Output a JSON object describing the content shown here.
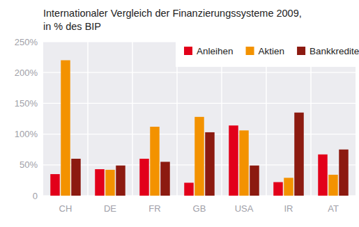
{
  "chart_data": {
    "type": "bar",
    "title": "Internationaler Vergleich der Finanzierungssysteme 2009,",
    "subtitle": "in % des BIP",
    "categories": [
      "CH",
      "DE",
      "FR",
      "GB",
      "USA",
      "IR",
      "AT"
    ],
    "series": [
      {
        "name": "Anleihen",
        "color": "#e2001a",
        "values": [
          35,
          43,
          60,
          21,
          114,
          22,
          67
        ]
      },
      {
        "name": "Aktien",
        "color": "#f39200",
        "values": [
          220,
          42,
          112,
          128,
          106,
          29,
          34
        ]
      },
      {
        "name": "Bankkredite",
        "color": "#8c1a10",
        "values": [
          60,
          49,
          55,
          103,
          49,
          135,
          75
        ]
      }
    ],
    "ylim": [
      0,
      250
    ],
    "yticks": [
      0,
      {
        "value": 50,
        "label": "50%"
      },
      {
        "value": 100,
        "label": "100%"
      },
      {
        "value": 150,
        "label": "150%"
      },
      {
        "value": 200,
        "label": "200%"
      },
      {
        "value": 250,
        "label": "250%"
      }
    ],
    "grid": true,
    "legend": "top-right"
  }
}
